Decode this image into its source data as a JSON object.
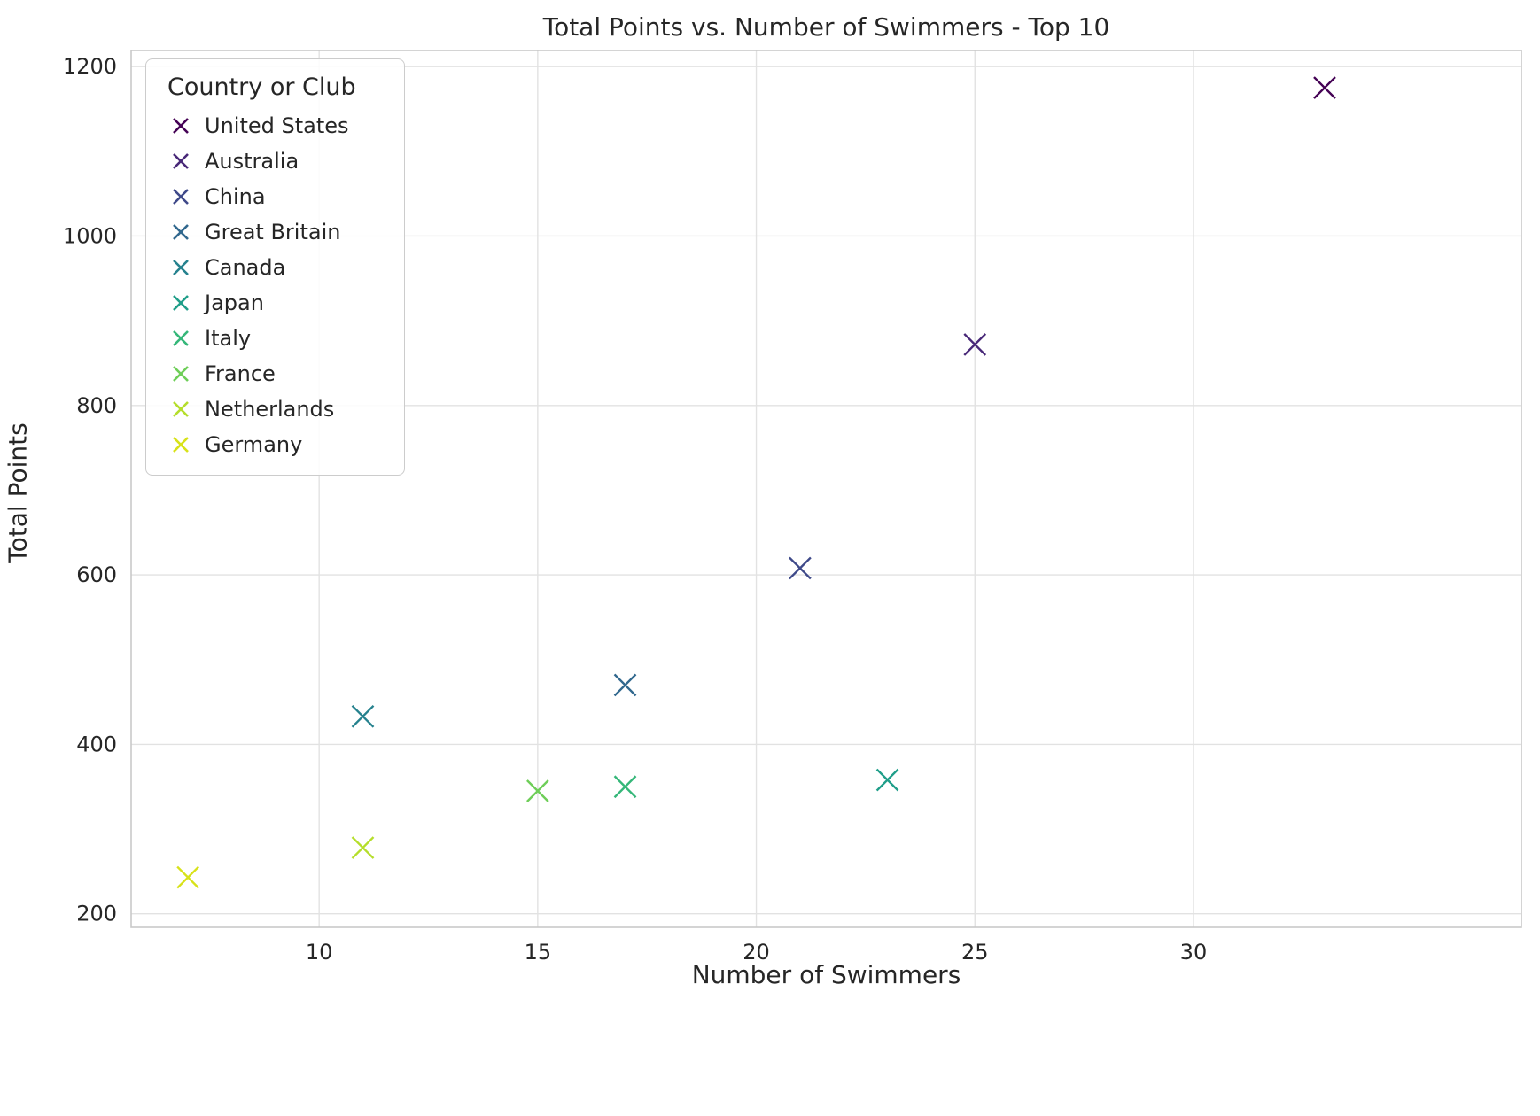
{
  "chart_data": {
    "type": "scatter",
    "title": "Total Points vs. Number of Swimmers - Top 10",
    "xlabel": "Number of Swimmers",
    "ylabel": "Total Points",
    "legend_title": "Country or Club",
    "legend_position": "upper left",
    "marker": "x",
    "grid": true,
    "xlim": [
      5.7,
      37.5
    ],
    "ylim": [
      184,
      1219
    ],
    "xticks": [
      10,
      15,
      20,
      25,
      30
    ],
    "yticks": [
      200,
      400,
      600,
      800,
      1000,
      1200
    ],
    "series": [
      {
        "name": "United States",
        "color": "#440154",
        "x": 33,
        "y": 1175
      },
      {
        "name": "Australia",
        "color": "#482878",
        "x": 25,
        "y": 872
      },
      {
        "name": "China",
        "color": "#3e4989",
        "x": 21,
        "y": 608
      },
      {
        "name": "Great Britain",
        "color": "#31688e",
        "x": 17,
        "y": 470
      },
      {
        "name": "Canada",
        "color": "#26828e",
        "x": 11,
        "y": 433
      },
      {
        "name": "Japan",
        "color": "#1f9e89",
        "x": 23,
        "y": 358
      },
      {
        "name": "Italy",
        "color": "#35b779",
        "x": 17,
        "y": 350
      },
      {
        "name": "France",
        "color": "#6ece58",
        "x": 15,
        "y": 345
      },
      {
        "name": "Netherlands",
        "color": "#b5de2b",
        "x": 11,
        "y": 278
      },
      {
        "name": "Germany",
        "color": "#d8e219",
        "x": 7,
        "y": 243
      }
    ]
  }
}
